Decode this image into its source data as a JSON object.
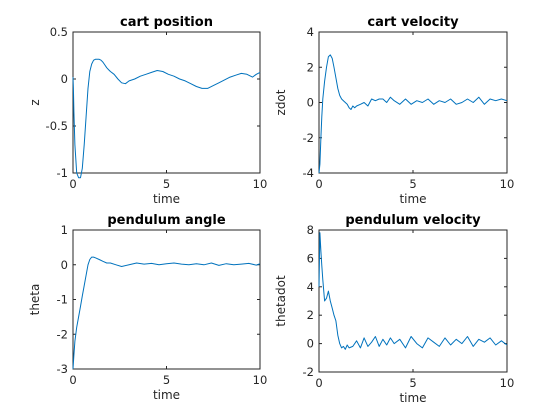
{
  "figure": {
    "background": "#ffffff",
    "line_color": "#0072bd"
  },
  "chart_data": [
    {
      "type": "line",
      "title": "cart position",
      "xlabel": "time",
      "ylabel": "z",
      "xlim": [
        0,
        10
      ],
      "ylim": [
        -1,
        0.5
      ],
      "xticks": [
        0,
        5,
        10
      ],
      "yticks": [
        -1,
        -0.5,
        0,
        0.5
      ],
      "ytick_labels": [
        "-1",
        "-0.5",
        "0",
        "0.5"
      ],
      "grid": false,
      "series": [
        {
          "x": [
            0,
            0.02,
            0.05,
            0.1,
            0.2,
            0.3,
            0.4,
            0.5,
            0.6,
            0.7,
            0.8,
            0.9,
            1.0,
            1.1,
            1.2,
            1.3,
            1.4,
            1.5,
            1.6,
            1.7,
            1.8,
            1.9,
            2.0,
            2.2,
            2.4,
            2.6,
            2.8,
            3.0,
            3.3,
            3.6,
            3.9,
            4.2,
            4.5,
            4.8,
            5.1,
            5.4,
            5.7,
            6.0,
            6.3,
            6.6,
            6.9,
            7.2,
            7.5,
            7.8,
            8.1,
            8.4,
            8.7,
            9.0,
            9.3,
            9.6,
            9.8,
            10.0
          ],
          "y": [
            0.02,
            -0.1,
            -0.35,
            -0.7,
            -1.0,
            -1.05,
            -1.05,
            -0.95,
            -0.7,
            -0.4,
            -0.1,
            0.08,
            0.16,
            0.2,
            0.21,
            0.21,
            0.21,
            0.2,
            0.18,
            0.15,
            0.12,
            0.1,
            0.08,
            0.05,
            0.0,
            -0.04,
            -0.05,
            -0.02,
            0.0,
            0.03,
            0.05,
            0.07,
            0.09,
            0.08,
            0.05,
            0.03,
            0.0,
            -0.02,
            -0.05,
            -0.08,
            -0.1,
            -0.1,
            -0.07,
            -0.04,
            -0.01,
            0.02,
            0.04,
            0.06,
            0.05,
            0.02,
            0.05,
            0.07
          ]
        }
      ]
    },
    {
      "type": "line",
      "title": "cart velocity",
      "xlabel": "time",
      "ylabel": "zdot",
      "xlim": [
        0,
        10
      ],
      "ylim": [
        -4,
        4
      ],
      "xticks": [
        0,
        5,
        10
      ],
      "yticks": [
        -4,
        -2,
        0,
        2,
        4
      ],
      "ytick_labels": [
        "-4",
        "-2",
        "0",
        "2",
        "4"
      ],
      "grid": false,
      "series": [
        {
          "x": [
            0,
            0.05,
            0.1,
            0.15,
            0.2,
            0.3,
            0.4,
            0.5,
            0.6,
            0.7,
            0.8,
            0.9,
            1.0,
            1.1,
            1.2,
            1.3,
            1.4,
            1.5,
            1.6,
            1.7,
            1.8,
            1.9,
            2.0,
            2.2,
            2.4,
            2.6,
            2.8,
            3.0,
            3.2,
            3.4,
            3.6,
            3.8,
            4.0,
            4.3,
            4.6,
            4.9,
            5.2,
            5.5,
            5.8,
            6.1,
            6.4,
            6.7,
            7.0,
            7.3,
            7.6,
            7.9,
            8.2,
            8.5,
            8.8,
            9.1,
            9.4,
            9.7,
            10.0
          ],
          "y": [
            -4,
            -3.5,
            -2.0,
            -0.8,
            0.2,
            1.2,
            2.0,
            2.6,
            2.7,
            2.5,
            2.0,
            1.4,
            0.8,
            0.4,
            0.2,
            0.1,
            0.0,
            -0.1,
            -0.3,
            -0.4,
            -0.2,
            -0.3,
            -0.2,
            -0.1,
            0.0,
            -0.2,
            0.2,
            0.1,
            0.2,
            0.2,
            0.0,
            0.3,
            0.1,
            -0.1,
            0.2,
            -0.1,
            0.1,
            0.0,
            0.2,
            -0.1,
            0.1,
            0.0,
            0.2,
            -0.1,
            0.0,
            0.2,
            0.0,
            0.3,
            -0.1,
            0.2,
            0.1,
            0.2,
            0.1
          ]
        }
      ]
    },
    {
      "type": "line",
      "title": "pendulum angle",
      "xlabel": "time",
      "ylabel": "theta",
      "xlim": [
        0,
        10
      ],
      "ylim": [
        -3,
        1
      ],
      "xticks": [
        0,
        5,
        10
      ],
      "yticks": [
        -3,
        -2,
        -1,
        0,
        1
      ],
      "ytick_labels": [
        "-3",
        "-2",
        "-1",
        "0",
        "1"
      ],
      "grid": false,
      "series": [
        {
          "x": [
            0,
            0.05,
            0.1,
            0.2,
            0.3,
            0.4,
            0.5,
            0.6,
            0.7,
            0.8,
            0.9,
            1.0,
            1.1,
            1.2,
            1.4,
            1.6,
            1.8,
            2.0,
            2.3,
            2.6,
            3.0,
            3.4,
            3.8,
            4.2,
            4.6,
            5.0,
            5.4,
            5.8,
            6.2,
            6.6,
            7.0,
            7.4,
            7.8,
            8.2,
            8.6,
            9.0,
            9.4,
            9.8,
            10.0
          ],
          "y": [
            -3.0,
            -2.6,
            -2.2,
            -1.8,
            -1.5,
            -1.2,
            -0.9,
            -0.6,
            -0.3,
            0.0,
            0.15,
            0.22,
            0.22,
            0.2,
            0.15,
            0.1,
            0.05,
            0.05,
            0.0,
            -0.05,
            0.0,
            0.05,
            0.02,
            0.04,
            0.0,
            0.03,
            0.05,
            0.02,
            0.0,
            0.03,
            0.0,
            0.05,
            -0.02,
            0.03,
            0.0,
            0.02,
            0.04,
            -0.01,
            0.03
          ]
        }
      ]
    },
    {
      "type": "line",
      "title": "pendulum velocity",
      "xlabel": "time",
      "ylabel": "thetadot",
      "xlim": [
        0,
        10
      ],
      "ylim": [
        -2,
        8
      ],
      "xticks": [
        0,
        5,
        10
      ],
      "yticks": [
        -2,
        0,
        2,
        4,
        6,
        8
      ],
      "ytick_labels": [
        "-2",
        "0",
        "2",
        "4",
        "6",
        "8"
      ],
      "grid": false,
      "series": [
        {
          "x": [
            0,
            0.05,
            0.1,
            0.15,
            0.2,
            0.3,
            0.4,
            0.5,
            0.6,
            0.7,
            0.8,
            0.9,
            1.0,
            1.1,
            1.2,
            1.3,
            1.4,
            1.5,
            1.6,
            1.8,
            2.0,
            2.2,
            2.4,
            2.6,
            2.8,
            3.0,
            3.2,
            3.4,
            3.6,
            3.8,
            4.0,
            4.3,
            4.6,
            4.9,
            5.2,
            5.5,
            5.8,
            6.1,
            6.4,
            6.7,
            7.0,
            7.3,
            7.6,
            7.9,
            8.2,
            8.5,
            8.8,
            9.1,
            9.4,
            9.7,
            10.0
          ],
          "y": [
            4.0,
            7.8,
            6.5,
            5.5,
            4.5,
            3.0,
            3.2,
            3.7,
            3.0,
            2.5,
            2.0,
            1.6,
            0.6,
            0.0,
            -0.3,
            -0.2,
            -0.4,
            -0.1,
            -0.3,
            -0.2,
            0.2,
            -0.3,
            0.4,
            -0.2,
            0.1,
            0.5,
            -0.2,
            0.3,
            -0.1,
            0.4,
            0.0,
            0.3,
            -0.3,
            0.5,
            0.0,
            -0.3,
            0.4,
            0.1,
            -0.2,
            0.4,
            -0.1,
            0.3,
            0.0,
            0.5,
            -0.2,
            0.3,
            0.1,
            0.4,
            -0.1,
            0.2,
            -0.1
          ]
        }
      ]
    }
  ]
}
